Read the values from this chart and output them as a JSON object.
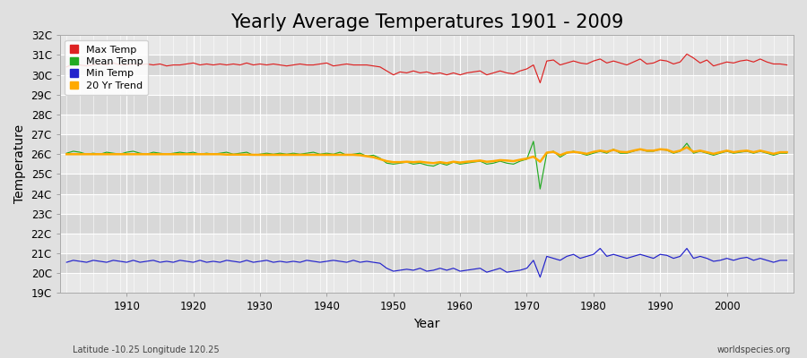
{
  "title": "Yearly Average Temperatures 1901 - 2009",
  "xlabel": "Year",
  "ylabel": "Temperature",
  "lat_lon_label": "Latitude -10.25 Longitude 120.25",
  "source_label": "worldspecies.org",
  "years": [
    1901,
    1902,
    1903,
    1904,
    1905,
    1906,
    1907,
    1908,
    1909,
    1910,
    1911,
    1912,
    1913,
    1914,
    1915,
    1916,
    1917,
    1918,
    1919,
    1920,
    1921,
    1922,
    1923,
    1924,
    1925,
    1926,
    1927,
    1928,
    1929,
    1930,
    1931,
    1932,
    1933,
    1934,
    1935,
    1936,
    1937,
    1938,
    1939,
    1940,
    1941,
    1942,
    1943,
    1944,
    1945,
    1946,
    1947,
    1948,
    1949,
    1950,
    1951,
    1952,
    1953,
    1954,
    1955,
    1956,
    1957,
    1958,
    1959,
    1960,
    1961,
    1962,
    1963,
    1964,
    1965,
    1966,
    1967,
    1968,
    1969,
    1970,
    1971,
    1972,
    1973,
    1974,
    1975,
    1976,
    1977,
    1978,
    1979,
    1980,
    1981,
    1982,
    1983,
    1984,
    1985,
    1986,
    1987,
    1988,
    1989,
    1990,
    1991,
    1992,
    1993,
    1994,
    1995,
    1996,
    1997,
    1998,
    1999,
    2000,
    2001,
    2002,
    2003,
    2004,
    2005,
    2006,
    2007,
    2008,
    2009
  ],
  "max_temp": [
    30.4,
    30.55,
    30.5,
    30.45,
    30.5,
    30.55,
    30.5,
    30.6,
    30.5,
    30.5,
    30.55,
    30.5,
    30.55,
    30.5,
    30.55,
    30.45,
    30.5,
    30.5,
    30.55,
    30.6,
    30.5,
    30.55,
    30.5,
    30.55,
    30.5,
    30.55,
    30.5,
    30.6,
    30.5,
    30.55,
    30.5,
    30.55,
    30.5,
    30.45,
    30.5,
    30.55,
    30.5,
    30.5,
    30.55,
    30.6,
    30.45,
    30.5,
    30.55,
    30.5,
    30.5,
    30.5,
    30.45,
    30.4,
    30.2,
    30.0,
    30.15,
    30.1,
    30.2,
    30.1,
    30.15,
    30.05,
    30.1,
    30.0,
    30.1,
    30.0,
    30.1,
    30.15,
    30.2,
    30.0,
    30.1,
    30.2,
    30.1,
    30.05,
    30.2,
    30.3,
    30.5,
    29.6,
    30.7,
    30.75,
    30.5,
    30.6,
    30.7,
    30.6,
    30.55,
    30.7,
    30.8,
    30.6,
    30.7,
    30.6,
    30.5,
    30.65,
    30.8,
    30.55,
    30.6,
    30.75,
    30.7,
    30.55,
    30.65,
    31.05,
    30.85,
    30.6,
    30.75,
    30.45,
    30.55,
    30.65,
    30.6,
    30.7,
    30.75,
    30.65,
    30.8,
    30.65,
    30.55,
    30.55,
    30.5
  ],
  "mean_temp": [
    26.05,
    26.15,
    26.1,
    26.0,
    26.05,
    26.0,
    26.1,
    26.05,
    26.0,
    26.1,
    26.15,
    26.05,
    26.0,
    26.1,
    26.05,
    26.0,
    26.05,
    26.1,
    26.05,
    26.1,
    26.0,
    26.05,
    26.0,
    26.05,
    26.1,
    26.0,
    26.05,
    26.1,
    25.95,
    26.0,
    26.05,
    26.0,
    26.05,
    26.0,
    26.05,
    26.0,
    26.05,
    26.1,
    26.0,
    26.05,
    26.0,
    26.1,
    25.95,
    26.0,
    26.05,
    25.9,
    25.95,
    25.8,
    25.55,
    25.5,
    25.55,
    25.6,
    25.5,
    25.55,
    25.45,
    25.4,
    25.55,
    25.45,
    25.6,
    25.5,
    25.55,
    25.6,
    25.65,
    25.5,
    25.55,
    25.65,
    25.55,
    25.5,
    25.65,
    25.75,
    26.65,
    24.25,
    26.05,
    26.15,
    25.85,
    26.05,
    26.15,
    26.05,
    25.95,
    26.05,
    26.15,
    26.05,
    26.25,
    26.05,
    26.05,
    26.15,
    26.25,
    26.15,
    26.15,
    26.25,
    26.2,
    26.05,
    26.15,
    26.55,
    26.05,
    26.15,
    26.05,
    25.95,
    26.05,
    26.15,
    26.05,
    26.1,
    26.15,
    26.05,
    26.15,
    26.05,
    25.95,
    26.05,
    26.05
  ],
  "min_temp": [
    20.55,
    20.65,
    20.6,
    20.55,
    20.65,
    20.6,
    20.55,
    20.65,
    20.6,
    20.55,
    20.65,
    20.55,
    20.6,
    20.65,
    20.55,
    20.6,
    20.55,
    20.65,
    20.6,
    20.55,
    20.65,
    20.55,
    20.6,
    20.55,
    20.65,
    20.6,
    20.55,
    20.65,
    20.55,
    20.6,
    20.65,
    20.55,
    20.6,
    20.55,
    20.6,
    20.55,
    20.65,
    20.6,
    20.55,
    20.6,
    20.65,
    20.6,
    20.55,
    20.65,
    20.55,
    20.6,
    20.55,
    20.5,
    20.25,
    20.1,
    20.15,
    20.2,
    20.15,
    20.25,
    20.1,
    20.15,
    20.25,
    20.15,
    20.25,
    20.1,
    20.15,
    20.2,
    20.25,
    20.05,
    20.15,
    20.25,
    20.05,
    20.1,
    20.15,
    20.25,
    20.65,
    19.8,
    20.85,
    20.75,
    20.65,
    20.85,
    20.95,
    20.75,
    20.85,
    20.95,
    21.25,
    20.85,
    20.95,
    20.85,
    20.75,
    20.85,
    20.95,
    20.85,
    20.75,
    20.95,
    20.9,
    20.75,
    20.85,
    21.25,
    20.75,
    20.85,
    20.75,
    20.6,
    20.65,
    20.75,
    20.65,
    20.75,
    20.8,
    20.65,
    20.75,
    20.65,
    20.55,
    20.65,
    20.65
  ],
  "trend_values": [
    26.0,
    26.0,
    26.0,
    26.0,
    26.0,
    26.0,
    26.0,
    26.0,
    26.0,
    26.0,
    26.0,
    26.0,
    26.0,
    26.0,
    26.0,
    26.0,
    26.0,
    26.0,
    26.0,
    26.0,
    26.0,
    26.0,
    26.0,
    26.0,
    25.98,
    25.98,
    25.98,
    25.98,
    25.97,
    25.97,
    25.97,
    25.97,
    25.97,
    25.97,
    25.97,
    25.97,
    25.97,
    25.97,
    25.97,
    25.97,
    25.97,
    25.97,
    25.97,
    25.97,
    25.95,
    25.9,
    25.85,
    25.75,
    25.65,
    25.6,
    25.6,
    25.62,
    25.6,
    25.62,
    25.58,
    25.55,
    25.6,
    25.55,
    25.62,
    25.58,
    25.62,
    25.65,
    25.68,
    25.62,
    25.65,
    25.7,
    25.68,
    25.65,
    25.72,
    25.78,
    25.88,
    25.62,
    26.08,
    26.12,
    25.95,
    26.08,
    26.12,
    26.08,
    26.02,
    26.12,
    26.18,
    26.12,
    26.22,
    26.12,
    26.1,
    26.18,
    26.25,
    26.18,
    26.18,
    26.25,
    26.22,
    26.1,
    26.18,
    26.35,
    26.12,
    26.18,
    26.1,
    26.02,
    26.1,
    26.18,
    26.1,
    26.15,
    26.18,
    26.1,
    26.18,
    26.1,
    26.02,
    26.1,
    26.1
  ],
  "max_color": "#dd2222",
  "mean_color": "#22aa22",
  "min_color": "#2222cc",
  "trend_color": "#ffaa00",
  "bg_color": "#e0e0e0",
  "plot_bg_color": "#ebebeb",
  "band_color_light": "#e8e8e8",
  "band_color_dark": "#d8d8d8",
  "grid_color": "#ffffff",
  "ylim": [
    19,
    32
  ],
  "yticks": [
    19,
    20,
    21,
    22,
    23,
    24,
    25,
    26,
    27,
    28,
    29,
    30,
    31,
    32
  ],
  "ytick_labels": [
    "19C",
    "20C",
    "21C",
    "22C",
    "23C",
    "24C",
    "25C",
    "26C",
    "27C",
    "28C",
    "29C",
    "30C",
    "31C",
    "32C"
  ],
  "xticks": [
    1910,
    1920,
    1930,
    1940,
    1950,
    1960,
    1970,
    1980,
    1990,
    2000
  ],
  "title_fontsize": 15,
  "axis_label_fontsize": 10,
  "tick_fontsize": 8.5,
  "legend_entries": [
    "Max Temp",
    "Mean Temp",
    "Min Temp",
    "20 Yr Trend"
  ]
}
